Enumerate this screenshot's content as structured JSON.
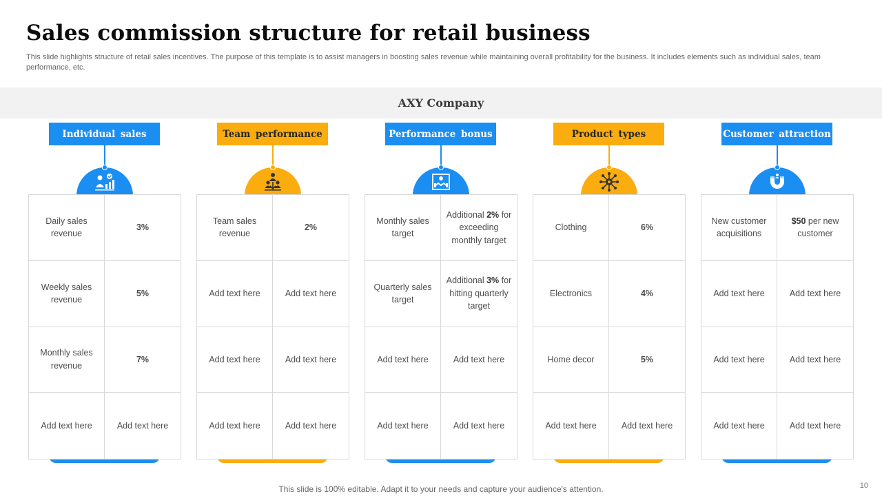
{
  "slide": {
    "title": "Sales commission structure for retail business",
    "subtitle": "This slide highlights structure of retail sales incentives. The purpose of this template is to assist managers in boosting sales revenue while maintaining overall profitability for the business. It includes elements such as individual sales, team performance, etc.",
    "company": "AXY Company",
    "footer": "This slide is 100% editable. Adapt it to your needs and capture your audience's attention.",
    "page_number": "10"
  },
  "columns": [
    {
      "header": "Individual sales",
      "color": "#1b8ef2",
      "icon": "sales-growth-icon",
      "rows": [
        {
          "label": "Daily sales revenue",
          "value": "3%"
        },
        {
          "label": "Weekly sales revenue",
          "value": "5%"
        },
        {
          "label": "Monthly sales revenue",
          "value": "7%"
        },
        {
          "label": "Add text here",
          "value": "Add text here"
        }
      ]
    },
    {
      "header": "Team performance",
      "color": "#fbac0f",
      "icon": "team-icon",
      "rows": [
        {
          "label": "Team sales revenue",
          "value": "2%"
        },
        {
          "label": "Add text here",
          "value": "Add text here"
        },
        {
          "label": "Add text here",
          "value": "Add text here"
        },
        {
          "label": "Add text here",
          "value": "Add text here"
        }
      ]
    },
    {
      "header": "Performance bonus",
      "color": "#1b8ef2",
      "icon": "handshake-bonus-icon",
      "rows": [
        {
          "label": "Monthly sales target",
          "value_pre": "Additional ",
          "value_bold": "2%",
          "value_post": " for exceeding monthly target"
        },
        {
          "label": "Quarterly sales target",
          "value_pre": "Additional ",
          "value_bold": "3%",
          "value_post": " for hitting quarterly target"
        },
        {
          "label": "Add text here",
          "value": "Add text here"
        },
        {
          "label": "Add text here",
          "value": "Add text here"
        }
      ]
    },
    {
      "header": "Product types",
      "color": "#fbac0f",
      "icon": "product-network-icon",
      "rows": [
        {
          "label": "Clothing",
          "value": "6%"
        },
        {
          "label": "Electronics",
          "value": "4%"
        },
        {
          "label": "Home decor",
          "value": "5%"
        },
        {
          "label": "Add text here",
          "value": "Add text here"
        }
      ]
    },
    {
      "header": "Customer attraction",
      "color": "#1b8ef2",
      "icon": "magnet-icon",
      "rows": [
        {
          "label": "New customer acquisitions",
          "value_bold": "$50",
          "value_post": " per new customer"
        },
        {
          "label": "Add text here",
          "value": "Add text here"
        },
        {
          "label": "Add text here",
          "value": "Add text here"
        },
        {
          "label": "Add text here",
          "value": "Add text here"
        }
      ]
    }
  ]
}
